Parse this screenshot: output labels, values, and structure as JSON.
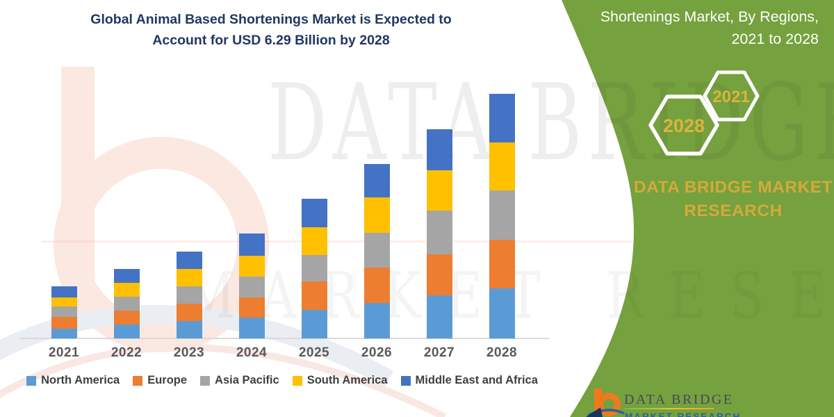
{
  "title": {
    "line1": "Global Animal Based Shortenings Market is Expected to",
    "line2": "Account for USD 6.29 Billion by 2028"
  },
  "panel": {
    "title_line1": "Shortenings Market, By Regions,",
    "title_line2": "2021 to 2028",
    "hexagons": [
      {
        "label": "2028"
      },
      {
        "label": "2021"
      }
    ],
    "brand_line1": "DATA BRIDGE MARKET",
    "brand_line2": "RESEARCH",
    "green": "#75A13E",
    "accent_gold": "#D4A93B"
  },
  "watermark": {
    "line1": "DATA BRIDGE",
    "line2": "MARKET RESEARCH"
  },
  "logo": {
    "name": "DATA BRIDGE",
    "subtitle": "MARKET RESEARCH",
    "orange": "#F0791F"
  },
  "chart_data": {
    "type": "bar",
    "stacked": true,
    "title": "Global Animal Based Shortenings Market is Expected to Account for USD 6.29 Billion by 2028",
    "unit": "USD Billion",
    "xlabel": "",
    "ylabel": "",
    "ylim": [
      0,
      6.6
    ],
    "gridlines": false,
    "legend_position": "bottom",
    "categories": [
      "2021",
      "2022",
      "2023",
      "2024",
      "2025",
      "2026",
      "2027",
      "2028"
    ],
    "series": [
      {
        "name": "North America",
        "color": "#5B9BD5",
        "values": [
          0.25,
          0.35,
          0.44,
          0.53,
          0.74,
          0.91,
          1.11,
          1.29
        ]
      },
      {
        "name": "Europe",
        "color": "#ED7D31",
        "values": [
          0.3,
          0.36,
          0.45,
          0.53,
          0.73,
          0.91,
          1.05,
          1.24
        ]
      },
      {
        "name": "Asia Pacific",
        "color": "#A5A5A5",
        "values": [
          0.28,
          0.36,
          0.45,
          0.53,
          0.68,
          0.89,
          1.12,
          1.28
        ]
      },
      {
        "name": "South America",
        "color": "#FFC000",
        "values": [
          0.23,
          0.36,
          0.44,
          0.53,
          0.71,
          0.92,
          1.05,
          1.23
        ]
      },
      {
        "name": "Middle East and Africa",
        "color": "#4472C4",
        "values": [
          0.28,
          0.35,
          0.45,
          0.57,
          0.73,
          0.86,
          1.05,
          1.25
        ]
      }
    ],
    "totals": [
      1.34,
      1.78,
      2.23,
      2.69,
      3.59,
      4.49,
      5.38,
      6.29
    ]
  }
}
